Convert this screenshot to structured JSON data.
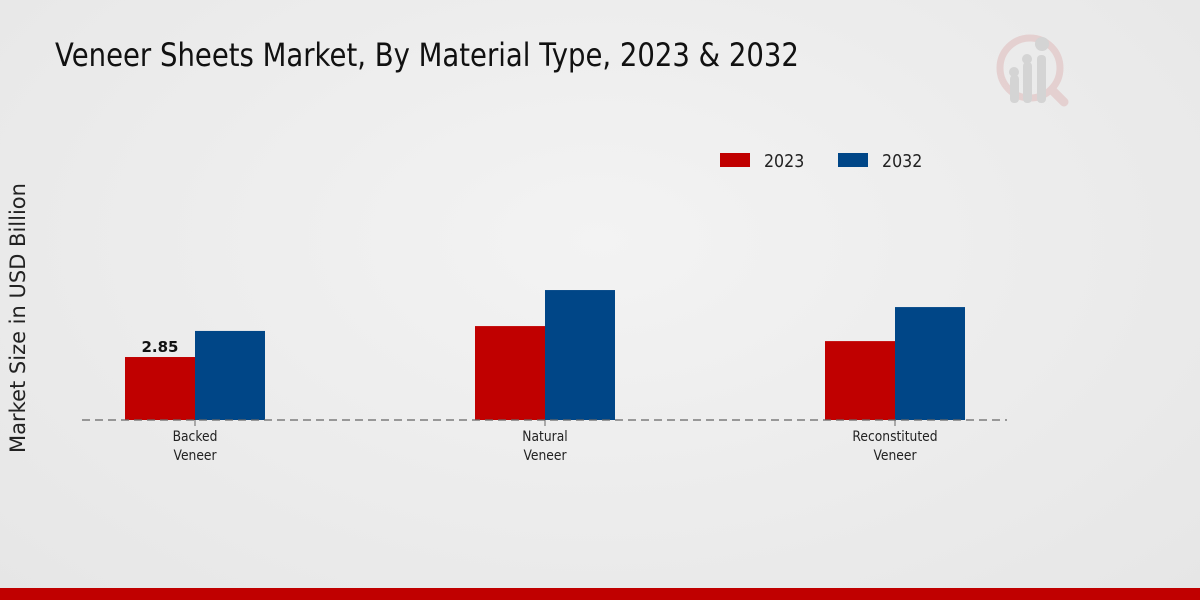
{
  "chart_data": {
    "type": "bar",
    "title": "Veneer Sheets Market, By Material Type, 2023 & 2032",
    "xlabel": "",
    "ylabel": "Market Size in USD Billion",
    "categories": [
      "Backed\nVeneer",
      "Natural\nVeneer",
      "Reconstituted\nVeneer"
    ],
    "series": [
      {
        "name": "2023",
        "color": "#c00000",
        "values": [
          2.85,
          4.25,
          3.57
        ]
      },
      {
        "name": "2032",
        "color": "#004687",
        "values": [
          4.03,
          5.88,
          5.11
        ]
      }
    ],
    "data_labels": [
      {
        "series": "2023",
        "category_index": 0,
        "text": "2.85"
      }
    ],
    "ylim": [
      0,
      8
    ],
    "grid": false,
    "legend_position": "top-right"
  }
}
